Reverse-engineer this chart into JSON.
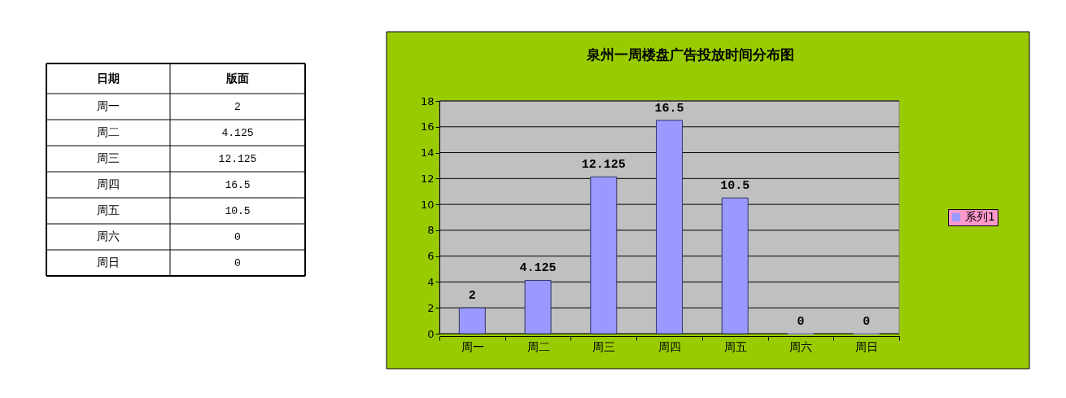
{
  "chart_data": [
    {
      "type": "other",
      "annotations": [
        "日期",
        "版面"
      ],
      "categories": [
        "周一",
        "周二",
        "周三",
        "周四",
        "周五",
        "周六",
        "周日"
      ],
      "values": [
        2,
        4.125,
        12.125,
        16.5,
        10.5,
        0,
        0
      ],
      "data_labels": true
    },
    {
      "type": "bar",
      "title": "泉州一周楼盘广告投放时间分布图",
      "categories": [
        "周一",
        "周二",
        "周三",
        "周四",
        "周五",
        "周六",
        "周日"
      ],
      "series": [
        {
          "name": "系列1",
          "color": "#9999ff",
          "values": [
            2,
            4.125,
            12.125,
            16.5,
            10.5,
            0,
            0
          ]
        }
      ],
      "ylim": [
        0,
        18
      ],
      "yticks": [
        0,
        2,
        4,
        6,
        8,
        10,
        12,
        14,
        16,
        18
      ],
      "grid": "y",
      "legend": "right",
      "data_labels": true
    }
  ]
}
